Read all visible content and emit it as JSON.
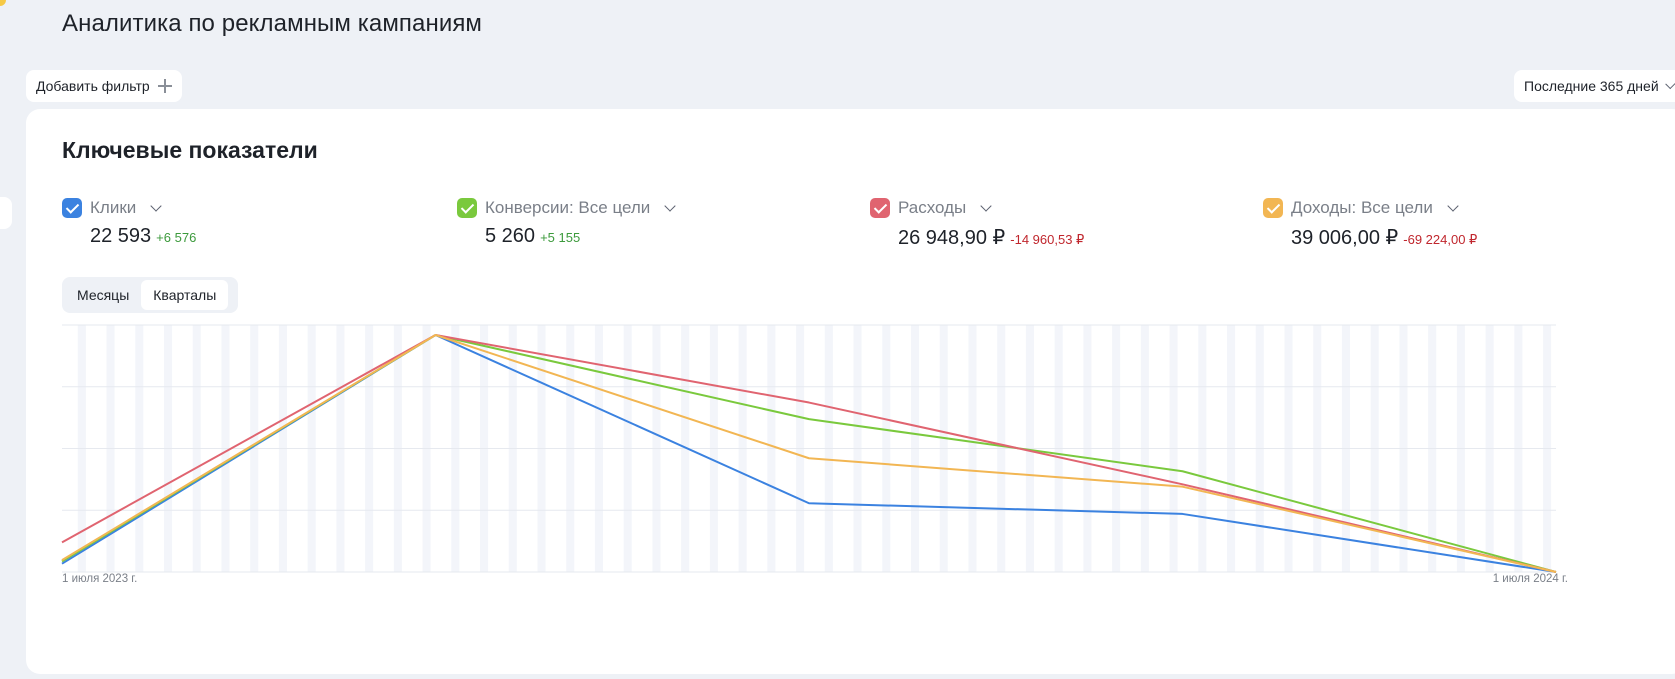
{
  "header": {
    "title": "Аналитика по рекламным кампаниям"
  },
  "toolbar": {
    "add_filter_label": "Добавить фильтр",
    "period_label": "Последние 365 дней"
  },
  "card": {
    "title": "Ключевые показатели"
  },
  "metrics": [
    {
      "label": "Клики",
      "value": "22 593",
      "delta": "+6 576",
      "color": "#3b82e0"
    },
    {
      "label": "Конверсии: Все цели",
      "value": "5 260",
      "delta": "+5 155",
      "color": "#7ac93d"
    },
    {
      "label": "Расходы",
      "value": "26 948,90 ₽",
      "delta": "-14 960,53 ₽",
      "color": "#e06470"
    },
    {
      "label": "Доходы: Все цели",
      "value": "39 006,00 ₽",
      "delta": "-69 224,00 ₽",
      "color": "#f2b653"
    }
  ],
  "granularity": {
    "options": [
      "Месяцы",
      "Кварталы"
    ],
    "selected": "Кварталы"
  },
  "chart_data": {
    "type": "line",
    "x": [
      "1 июля 2023 г.",
      "",
      "",
      "",
      "1 июля 2024 г."
    ],
    "x_tick_labels": [
      "1 июля 2023 г.",
      "1 июля 2024 г."
    ],
    "y_scale": "relative (fraction of each series maximum)",
    "ylim": [
      0,
      1
    ],
    "grid": true,
    "series": [
      {
        "name": "Клики",
        "color": "#3b82e0",
        "values": [
          0.035,
          1.0,
          0.29,
          0.245,
          0.0
        ]
      },
      {
        "name": "Конверсии: Все цели",
        "color": "#7ac93d",
        "values": [
          0.045,
          1.0,
          0.645,
          0.425,
          0.0
        ]
      },
      {
        "name": "Расходы",
        "color": "#e06470",
        "values": [
          0.125,
          1.0,
          0.715,
          0.37,
          0.0
        ]
      },
      {
        "name": "Доходы: Все цели",
        "color": "#f2b653",
        "values": [
          0.05,
          1.0,
          0.48,
          0.36,
          0.0
        ]
      }
    ]
  }
}
